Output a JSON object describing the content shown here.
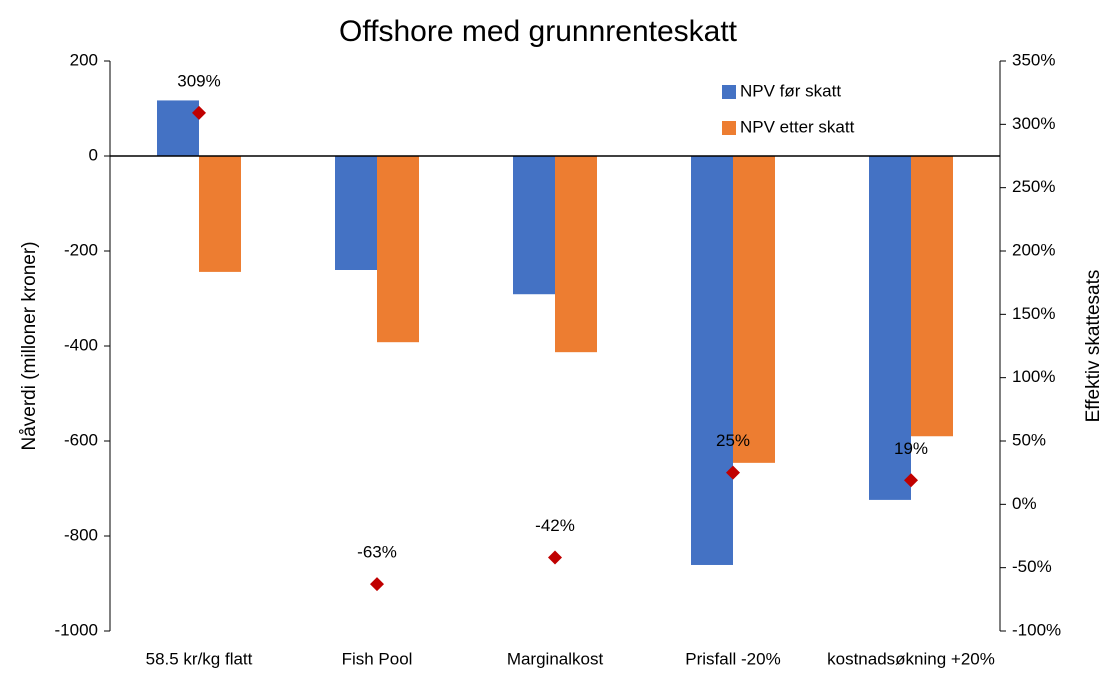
{
  "chart_data": {
    "type": "bar",
    "title": "Offshore med grunnrenteskatt",
    "ylabel": "Nåverdi (milloner kroner)",
    "y2label": "Effektiv skattesats",
    "categories": [
      "58.5 kr/kg flatt",
      "Fish Pool",
      "Marginalkost",
      "Prisfall -20%",
      "kostnadsøkning +20%"
    ],
    "series": [
      {
        "name": "NPV før skatt",
        "color": "#4472c4",
        "values": [
          117,
          -240,
          -291,
          -861,
          -724
        ]
      },
      {
        "name": "NPV etter skatt",
        "color": "#ed7d31",
        "values": [
          -244,
          -392,
          -413,
          -646,
          -590
        ]
      },
      {
        "type": "scatter",
        "axis": "y2",
        "color": "#c00000",
        "values": [
          309,
          -63,
          -42,
          25,
          19
        ],
        "value_labels": [
          "309%",
          "-63%",
          "-42%",
          "25%",
          "19%"
        ]
      }
    ],
    "ylim": [
      -1000,
      200
    ],
    "yticks": [
      -1000,
      -800,
      -600,
      -400,
      -200,
      0,
      200
    ],
    "y2lim": [
      -100,
      350
    ],
    "y2ticks": [
      {
        "value": -100,
        "label": "-100%"
      },
      {
        "value": -50,
        "label": "-50%"
      },
      {
        "value": 0,
        "label": "0%"
      },
      {
        "value": 50,
        "label": "50%"
      },
      {
        "value": 100,
        "label": "100%"
      },
      {
        "value": 150,
        "label": "150%"
      },
      {
        "value": 200,
        "label": "200%"
      },
      {
        "value": 250,
        "label": "250%"
      },
      {
        "value": 300,
        "label": "300%"
      },
      {
        "value": 350,
        "label": "350%"
      }
    ],
    "legend": "upper right"
  }
}
